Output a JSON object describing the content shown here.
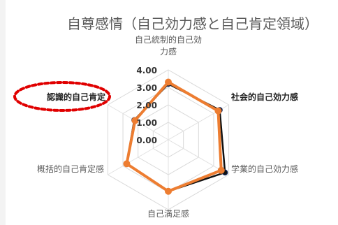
{
  "chart_data": {
    "type": "radar",
    "title": "自尊感情（自己効力感と自己肯定領域）",
    "categories": [
      "自己統制的自己効力感",
      "社会的自己効力感",
      "学業的自己効力感",
      "自己満足感",
      "概括的自己肯定感",
      "認識的自己肯定"
    ],
    "category_display": [
      [
        "自己統制的自己効",
        "力感"
      ],
      [
        "社会的自己効力感"
      ],
      [
        "学業的自己効力感"
      ],
      [
        "自己満足感"
      ],
      [
        "概括的自己肯定感"
      ],
      [
        "認識的自己肯定"
      ]
    ],
    "tick_labels": [
      "0.00",
      "1.00",
      "2.00",
      "3.00",
      "4.00"
    ],
    "r_range": [
      0,
      4
    ],
    "series": [
      {
        "color": "#111111",
        "values": [
          3.2,
          3.4,
          3.75,
          2.95,
          2.75,
          2.25
        ]
      },
      {
        "color": "#ed7d31",
        "values": [
          3.3,
          3.3,
          3.5,
          2.95,
          2.75,
          2.2
        ]
      }
    ],
    "highlight": {
      "target": "認識的自己肯定",
      "color": "#e00000"
    },
    "grid": true
  }
}
